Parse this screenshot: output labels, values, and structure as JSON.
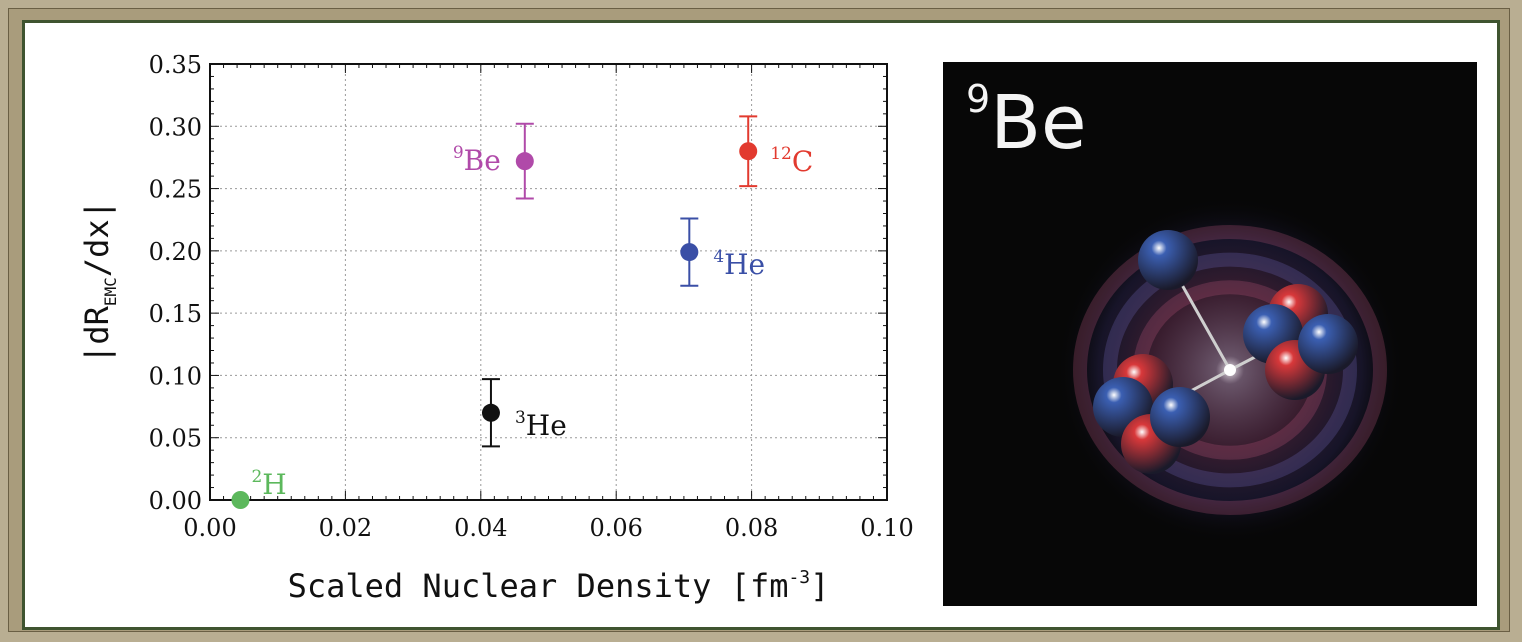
{
  "chart_data": {
    "type": "scatter",
    "xlabel": "Scaled Nuclear Density [fm",
    "xlabel_sup": "-3",
    "xlabel_end": "]",
    "ylabel_pre": "|dR",
    "ylabel_sub": "EMC",
    "ylabel_post": "/dx|",
    "xlim": [
      0.0,
      0.1
    ],
    "ylim": [
      0.0,
      0.35
    ],
    "xticks": [
      "0.00",
      "0.02",
      "0.04",
      "0.06",
      "0.08",
      "0.10"
    ],
    "yticks": [
      "0.00",
      "0.05",
      "0.10",
      "0.15",
      "0.20",
      "0.25",
      "0.30",
      "0.35"
    ],
    "grid": true,
    "points": [
      {
        "mass": "2",
        "element": "H",
        "x": 0.0045,
        "y": 0.0,
        "err": 0.0,
        "color": "#5cb85c",
        "label_side": "right-above"
      },
      {
        "mass": "3",
        "element": "He",
        "x": 0.0415,
        "y": 0.07,
        "err": 0.027,
        "color": "#111111",
        "label_side": "right"
      },
      {
        "mass": "4",
        "element": "He",
        "x": 0.0708,
        "y": 0.199,
        "err": 0.027,
        "color": "#3a4fa6",
        "label_side": "right"
      },
      {
        "mass": "9",
        "element": "Be",
        "x": 0.0465,
        "y": 0.272,
        "err": 0.03,
        "color": "#b04aa9",
        "label_side": "left"
      },
      {
        "mass": "12",
        "element": "C",
        "x": 0.0795,
        "y": 0.28,
        "err": 0.028,
        "color": "#e23a2f",
        "label_side": "right"
      }
    ]
  },
  "inset": {
    "mass": "9",
    "element": "Be",
    "proton_color": "#d8383a",
    "neutron_color": "#3b5fb2",
    "background_color": "#070707"
  }
}
